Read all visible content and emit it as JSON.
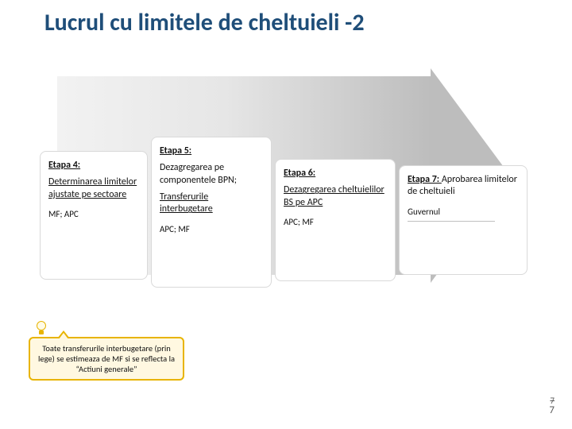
{
  "title": "Lucrul cu limitele de cheltuieli -2",
  "colors": {
    "title": "#1f4e79",
    "arrow_gradient_start": "#f2f2f2",
    "arrow_gradient_end": "#bdbdbd",
    "stage_border": "#d9d9d9",
    "callout_bg": "#fff8e1",
    "callout_border": "#e8b400"
  },
  "stages": {
    "s4": {
      "label": "Etapa 4:",
      "body": "Determinarea limitelor ajustate pe sectoare",
      "actors": "MF; APC"
    },
    "s5": {
      "label": "Etapa 5:",
      "body1": "Dezagregarea pe componentele BPN;",
      "body2": "Transferurile interbugetare",
      "actors": "APC;  MF"
    },
    "s6": {
      "label": "Etapa 6:",
      "body": "Dezagregarea cheltuielilor BS pe APC",
      "actors": "APC; MF"
    },
    "s7": {
      "label_prefix": "Etapa 7: ",
      "body_inline": "Aprobarea limitelor de cheltuieli",
      "actors": "Guvernul"
    }
  },
  "callout": "Toate transferurile interbugetare  (prin lege) se estimeaza de MF si se reflecta la “Actiuni generale”",
  "page": {
    "strike": "7",
    "num": "7"
  }
}
